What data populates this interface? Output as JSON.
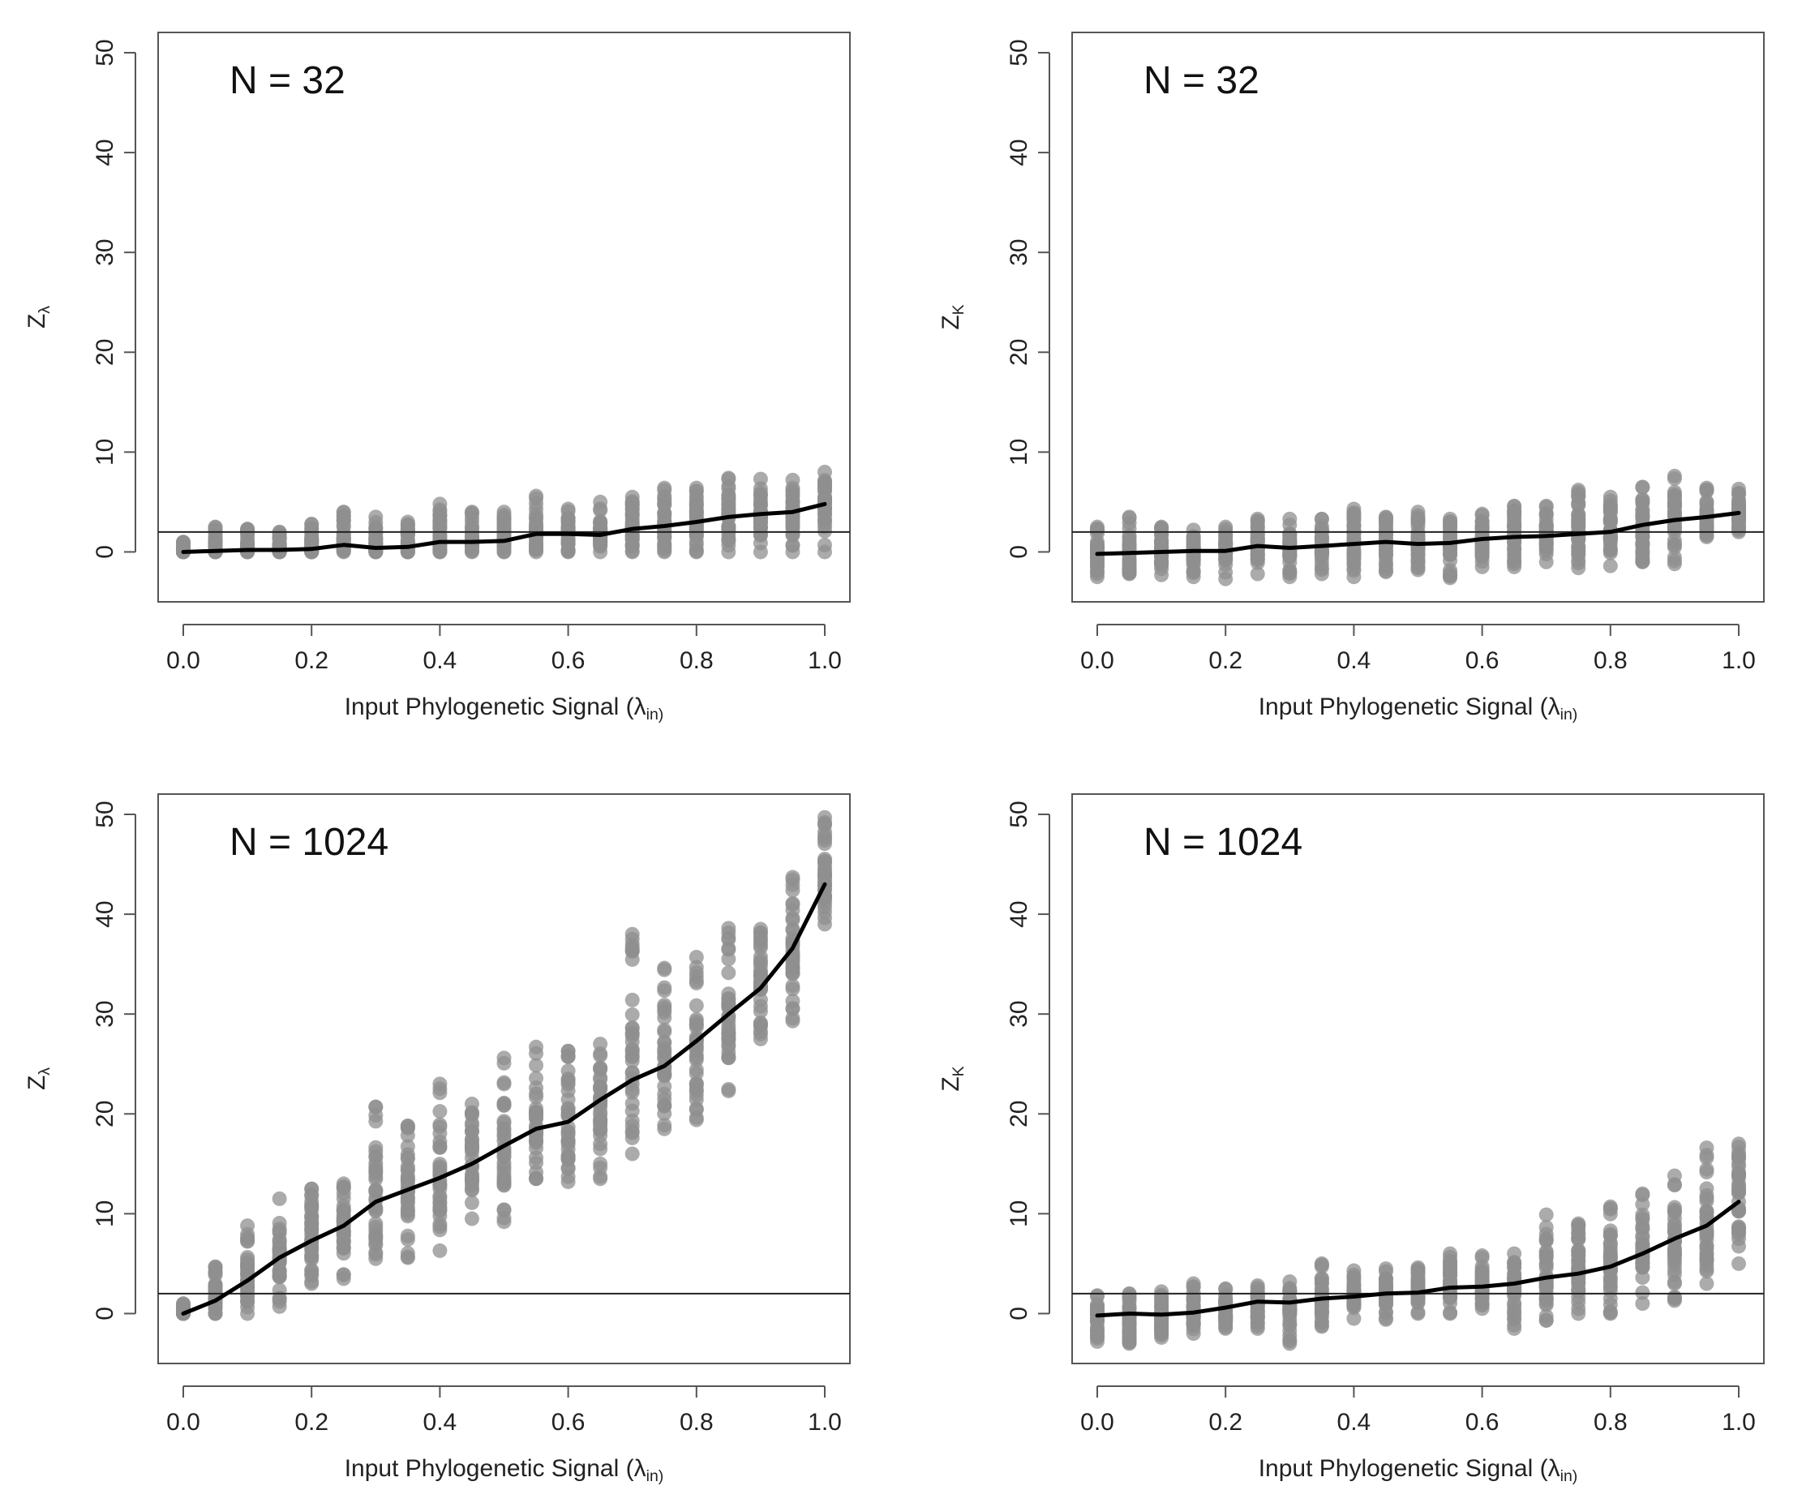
{
  "colors": {
    "points": "#8f8f8f",
    "mean_line": "#000000",
    "reference_line": "#222222",
    "frame": "#555555"
  },
  "chart_data": [
    {
      "type": "scatter",
      "panel_label": "N = 32",
      "xlabel": "Input Phylogenetic Signal (λin)",
      "ylabel": "Zλ",
      "xlim": [
        0,
        1
      ],
      "ylim": [
        -5,
        50
      ],
      "x_ticks": [
        0.0,
        0.2,
        0.4,
        0.6,
        0.8,
        1.0
      ],
      "x_tick_labels": [
        "0.0",
        "0.2",
        "0.4",
        "0.6",
        "0.8",
        "1.0"
      ],
      "y_ticks": [
        0,
        10,
        20,
        30,
        40,
        50
      ],
      "y_tick_labels": [
        "0",
        "10",
        "20",
        "30",
        "40",
        "50"
      ],
      "reference_line_y": 2,
      "x": [
        0.0,
        0.05,
        0.1,
        0.15,
        0.2,
        0.25,
        0.3,
        0.35,
        0.4,
        0.45,
        0.5,
        0.55,
        0.6,
        0.65,
        0.7,
        0.75,
        0.8,
        0.85,
        0.9,
        0.95,
        1.0
      ],
      "point_ranges": [
        [
          0,
          1
        ],
        [
          0,
          2.5
        ],
        [
          0,
          2.3
        ],
        [
          0,
          2
        ],
        [
          0,
          2.8
        ],
        [
          0,
          4
        ],
        [
          0,
          3.5
        ],
        [
          0,
          3
        ],
        [
          0,
          4.8
        ],
        [
          0,
          4
        ],
        [
          0,
          4
        ],
        [
          0,
          5.6
        ],
        [
          0,
          4.3
        ],
        [
          0,
          5
        ],
        [
          0,
          5.5
        ],
        [
          0,
          6.4
        ],
        [
          0,
          6.4
        ],
        [
          0,
          7.4
        ],
        [
          0,
          7.3
        ],
        [
          0,
          7.2
        ],
        [
          0,
          8
        ]
      ],
      "mean": [
        0,
        0.1,
        0.2,
        0.2,
        0.3,
        0.7,
        0.4,
        0.5,
        1,
        1,
        1.1,
        1.8,
        1.8,
        1.7,
        2.3,
        2.6,
        3,
        3.5,
        3.8,
        4,
        4.8
      ],
      "grid": false,
      "legend": "none"
    },
    {
      "type": "scatter",
      "panel_label": "N = 32",
      "xlabel": "Input Phylogenetic Signal (λin)",
      "ylabel": "ZK",
      "xlim": [
        0,
        1
      ],
      "ylim": [
        -5,
        50
      ],
      "x_ticks": [
        0.0,
        0.2,
        0.4,
        0.6,
        0.8,
        1.0
      ],
      "x_tick_labels": [
        "0.0",
        "0.2",
        "0.4",
        "0.6",
        "0.8",
        "1.0"
      ],
      "y_ticks": [
        0,
        10,
        20,
        30,
        40,
        50
      ],
      "y_tick_labels": [
        "0",
        "10",
        "20",
        "30",
        "40",
        "50"
      ],
      "reference_line_y": 2,
      "x": [
        0.0,
        0.05,
        0.1,
        0.15,
        0.2,
        0.25,
        0.3,
        0.35,
        0.4,
        0.45,
        0.5,
        0.55,
        0.6,
        0.65,
        0.7,
        0.75,
        0.8,
        0.85,
        0.9,
        0.95,
        1.0
      ],
      "point_ranges": [
        [
          -2.5,
          2.5
        ],
        [
          -2.2,
          3.5
        ],
        [
          -2.3,
          2.5
        ],
        [
          -2.5,
          2.2
        ],
        [
          -2.7,
          2.5
        ],
        [
          -2.2,
          3.3
        ],
        [
          -2.5,
          3.3
        ],
        [
          -2.2,
          3.3
        ],
        [
          -2.5,
          4.3
        ],
        [
          -2,
          3.5
        ],
        [
          -1.8,
          4
        ],
        [
          -2.6,
          3.3
        ],
        [
          -1.5,
          3.8
        ],
        [
          -1.5,
          4.6
        ],
        [
          -1,
          4.6
        ],
        [
          -1.6,
          6.2
        ],
        [
          -1.4,
          5.5
        ],
        [
          -1,
          6.5
        ],
        [
          -1.2,
          7.6
        ],
        [
          1.5,
          6.4
        ],
        [
          2,
          6.3
        ]
      ],
      "mean": [
        -0.2,
        -0.1,
        0,
        0.1,
        0.1,
        0.6,
        0.4,
        0.6,
        0.8,
        1,
        0.8,
        0.9,
        1.3,
        1.5,
        1.6,
        1.8,
        2,
        2.7,
        3.2,
        3.5,
        3.9
      ],
      "grid": false,
      "legend": "none"
    },
    {
      "type": "scatter",
      "panel_label": "N = 1024",
      "xlabel": "Input Phylogenetic Signal (λin)",
      "ylabel": "Zλ",
      "xlim": [
        0,
        1
      ],
      "ylim": [
        -5,
        50
      ],
      "x_ticks": [
        0.0,
        0.2,
        0.4,
        0.6,
        0.8,
        1.0
      ],
      "x_tick_labels": [
        "0.0",
        "0.2",
        "0.4",
        "0.6",
        "0.8",
        "1.0"
      ],
      "y_ticks": [
        0,
        10,
        20,
        30,
        40,
        50
      ],
      "y_tick_labels": [
        "0",
        "10",
        "20",
        "30",
        "40",
        "50"
      ],
      "reference_line_y": 2,
      "x": [
        0.0,
        0.05,
        0.1,
        0.15,
        0.2,
        0.25,
        0.3,
        0.35,
        0.4,
        0.45,
        0.5,
        0.55,
        0.6,
        0.65,
        0.7,
        0.75,
        0.8,
        0.85,
        0.9,
        0.95,
        1.0
      ],
      "point_ranges": [
        [
          0,
          1
        ],
        [
          0,
          4.7
        ],
        [
          0,
          8.8
        ],
        [
          0.7,
          11.5
        ],
        [
          3,
          12.5
        ],
        [
          3.5,
          13
        ],
        [
          5.5,
          20.7
        ],
        [
          5.6,
          18.8
        ],
        [
          6.3,
          23
        ],
        [
          9.5,
          21
        ],
        [
          9.2,
          25.6
        ],
        [
          13.5,
          26.7
        ],
        [
          13.2,
          26.3
        ],
        [
          13.5,
          27
        ],
        [
          16,
          38
        ],
        [
          18.5,
          34.6
        ],
        [
          19.4,
          35.7
        ],
        [
          22.3,
          38.6
        ],
        [
          27.5,
          38.5
        ],
        [
          29.3,
          43.7
        ],
        [
          39,
          49.7
        ]
      ],
      "mean": [
        0,
        1.3,
        3.3,
        5.6,
        7.3,
        8.8,
        11.2,
        12.4,
        13.6,
        15,
        16.8,
        18.5,
        19.2,
        21.4,
        23.4,
        24.8,
        27.3,
        30,
        32.6,
        36.6,
        43
      ],
      "grid": false,
      "legend": "none"
    },
    {
      "type": "scatter",
      "panel_label": "N = 1024",
      "xlabel": "Input Phylogenetic Signal (λin)",
      "ylabel": "ZK",
      "xlim": [
        0,
        1
      ],
      "ylim": [
        -5,
        50
      ],
      "x_ticks": [
        0.0,
        0.2,
        0.4,
        0.6,
        0.8,
        1.0
      ],
      "x_tick_labels": [
        "0.0",
        "0.2",
        "0.4",
        "0.6",
        "0.8",
        "1.0"
      ],
      "y_ticks": [
        0,
        10,
        20,
        30,
        40,
        50
      ],
      "y_tick_labels": [
        "0",
        "10",
        "20",
        "30",
        "40",
        "50"
      ],
      "reference_line_y": 2,
      "x": [
        0.0,
        0.05,
        0.1,
        0.15,
        0.2,
        0.25,
        0.3,
        0.35,
        0.4,
        0.45,
        0.5,
        0.55,
        0.6,
        0.65,
        0.7,
        0.75,
        0.8,
        0.85,
        0.9,
        0.95,
        1.0
      ],
      "point_ranges": [
        [
          -2.8,
          1.8
        ],
        [
          -3,
          2
        ],
        [
          -2.4,
          2.2
        ],
        [
          -2,
          3
        ],
        [
          -1.5,
          2.5
        ],
        [
          -1.5,
          2.8
        ],
        [
          -3,
          3.2
        ],
        [
          -1.3,
          5
        ],
        [
          -0.5,
          4.3
        ],
        [
          -0.6,
          4.5
        ],
        [
          0,
          4.6
        ],
        [
          0,
          6
        ],
        [
          0.5,
          5.8
        ],
        [
          -1.5,
          6
        ],
        [
          -0.7,
          9.9
        ],
        [
          0,
          9
        ],
        [
          0,
          10.7
        ],
        [
          1,
          12
        ],
        [
          1.3,
          13.8
        ],
        [
          3,
          16.6
        ],
        [
          5,
          17
        ]
      ],
      "mean": [
        -0.2,
        0,
        -0.1,
        0.1,
        0.6,
        1.2,
        1.1,
        1.5,
        1.7,
        2,
        2.1,
        2.6,
        2.7,
        3,
        3.6,
        4,
        4.7,
        6,
        7.5,
        8.8,
        11.2
      ],
      "grid": false,
      "legend": "none"
    }
  ]
}
